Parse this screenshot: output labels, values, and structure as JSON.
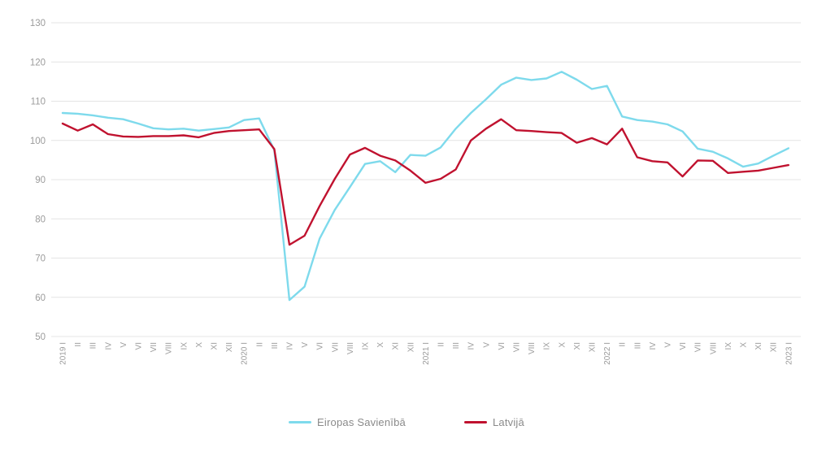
{
  "chart_data": {
    "type": "line",
    "title": "",
    "xlabel": "",
    "ylabel": "",
    "ylim": [
      50,
      130
    ],
    "yticks": [
      50,
      60,
      70,
      80,
      90,
      100,
      110,
      120,
      130
    ],
    "grid": "horizontal",
    "legend_position": "bottom",
    "categories": [
      "2019 I",
      "II",
      "III",
      "IV",
      "V",
      "VI",
      "VII",
      "VIII",
      "IX",
      "X",
      "XI",
      "XII",
      "2020 I",
      "II",
      "III",
      "IV",
      "V",
      "VI",
      "VII",
      "VIII",
      "IX",
      "X",
      "XI",
      "XII",
      "2021 I",
      "II",
      "III",
      "IV",
      "V",
      "VI",
      "VII",
      "VIII",
      "IX",
      "X",
      "XI",
      "XII",
      "2022 I",
      "II",
      "III",
      "IV",
      "V",
      "VI",
      "VII",
      "VIII",
      "IX",
      "X",
      "XI",
      "XII",
      "2023 I"
    ],
    "series": [
      {
        "name": "Eiropas Savienībā",
        "color": "#7edaec",
        "values": [
          107.0,
          106.8,
          106.4,
          105.8,
          105.4,
          104.3,
          103.1,
          102.8,
          103.0,
          102.5,
          102.9,
          103.3,
          105.2,
          105.6,
          97.5,
          59.3,
          62.7,
          75.0,
          82.3,
          88.1,
          94.0,
          94.7,
          91.9,
          96.3,
          96.1,
          98.2,
          103.0,
          107.0,
          110.5,
          114.2,
          116.0,
          115.4,
          115.8,
          117.5,
          115.5,
          113.1,
          113.9,
          106.1,
          105.2,
          104.8,
          104.1,
          102.3,
          97.9,
          97.1,
          95.4,
          93.3,
          94.1,
          96.1,
          98.0
        ]
      },
      {
        "name": "Latvijā",
        "color": "#c0122f",
        "values": [
          104.3,
          102.5,
          104.1,
          101.6,
          101.0,
          100.9,
          101.1,
          101.1,
          101.3,
          100.8,
          101.9,
          102.4,
          102.6,
          102.8,
          97.8,
          73.4,
          75.7,
          83.3,
          90.2,
          96.4,
          98.1,
          96.1,
          94.9,
          92.3,
          89.2,
          90.2,
          92.6,
          100.0,
          103.0,
          105.4,
          102.6,
          102.4,
          102.1,
          101.9,
          99.4,
          100.6,
          99.0,
          103.0,
          95.7,
          94.7,
          94.4,
          90.8,
          94.9,
          94.8,
          91.7,
          92.0,
          92.3,
          93.0,
          93.7
        ]
      }
    ]
  },
  "colors": {
    "grid": "#e4e4e4",
    "axis_tick_text": "#9b9b9b",
    "legend_text": "#8a8a8a",
    "background": "#ffffff"
  }
}
